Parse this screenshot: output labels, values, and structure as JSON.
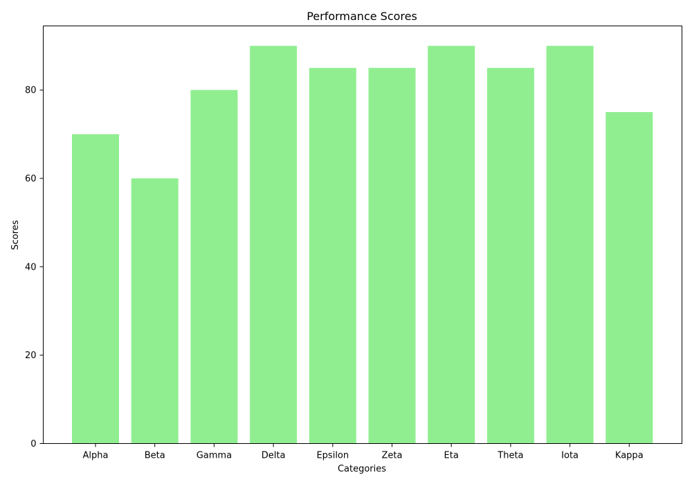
{
  "chart_data": {
    "type": "bar",
    "title": "Performance Scores",
    "xlabel": "Categories",
    "ylabel": "Scores",
    "categories": [
      "Alpha",
      "Beta",
      "Gamma",
      "Delta",
      "Epsilon",
      "Zeta",
      "Eta",
      "Theta",
      "Iota",
      "Kappa"
    ],
    "values": [
      70,
      60,
      80,
      90,
      85,
      85,
      90,
      85,
      90,
      75
    ],
    "ylim": [
      0,
      94.5
    ],
    "yticks": [
      0,
      20,
      40,
      60,
      80
    ],
    "grid": false,
    "legend": "none",
    "bar_color": "#90ee90"
  }
}
